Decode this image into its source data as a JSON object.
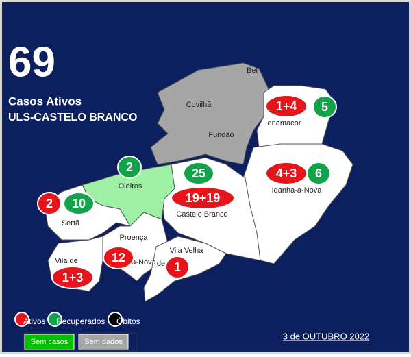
{
  "header": {
    "total": "69",
    "label": "Casos Ativos",
    "region": "ULS-CASTELO BRANCO"
  },
  "regions": [
    "Bel",
    "Covilhã",
    "Fundão",
    "enamacor",
    "Idanha-a-Nova",
    "Oleiros",
    "Castelo Branco",
    "Sertã",
    "Proença",
    "a-Nova",
    "Vila Velha",
    "de",
    "Vila de"
  ],
  "ativos": [
    "1+4",
    "4+3",
    "19+19",
    "2",
    "12",
    "1",
    "1+3"
  ],
  "recuperados": [
    "5",
    "6",
    "25",
    "2",
    "10"
  ],
  "legend": [
    "Ativos",
    "Recuperados",
    "Óbitos"
  ],
  "buttons": [
    "Sem casos",
    "Sem dados"
  ],
  "date": "3 de OUTUBRO 2022"
}
